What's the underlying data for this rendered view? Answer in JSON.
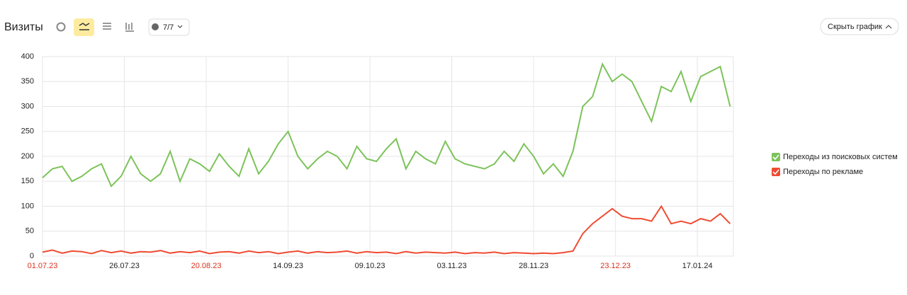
{
  "header": {
    "title": "Визиты",
    "filter": "7/7",
    "hide_button": "Скрыть график"
  },
  "chart_data": {
    "type": "line",
    "x": [
      "01.07.23",
      "04.07.23",
      "07.07.23",
      "10.07.23",
      "13.07.23",
      "16.07.23",
      "19.07.23",
      "22.07.23",
      "25.07.23",
      "28.07.23",
      "31.07.23",
      "03.08.23",
      "06.08.23",
      "09.08.23",
      "12.08.23",
      "15.08.23",
      "18.08.23",
      "21.08.23",
      "24.08.23",
      "27.08.23",
      "30.08.23",
      "02.09.23",
      "05.09.23",
      "08.09.23",
      "11.09.23",
      "14.09.23",
      "17.09.23",
      "20.09.23",
      "23.09.23",
      "26.09.23",
      "29.09.23",
      "02.10.23",
      "05.10.23",
      "08.10.23",
      "11.10.23",
      "14.10.23",
      "17.10.23",
      "20.10.23",
      "23.10.23",
      "26.10.23",
      "29.10.23",
      "01.11.23",
      "04.11.23",
      "07.11.23",
      "10.11.23",
      "13.11.23",
      "16.11.23",
      "19.11.23",
      "22.11.23",
      "25.11.23",
      "28.11.23",
      "01.12.23",
      "04.12.23",
      "07.12.23",
      "10.12.23",
      "13.12.23",
      "16.12.23",
      "19.12.23",
      "22.12.23",
      "25.12.23",
      "28.12.23",
      "31.12.23",
      "03.01.24",
      "06.01.24",
      "09.01.24",
      "12.01.24",
      "15.01.24",
      "18.01.24",
      "21.01.24",
      "24.01.24",
      "27.01.24"
    ],
    "series": [
      {
        "name": "Переходы из поисковых систем",
        "color": "#7cc35a",
        "values": [
          157,
          175,
          180,
          150,
          160,
          175,
          185,
          140,
          160,
          200,
          165,
          150,
          165,
          210,
          150,
          195,
          185,
          170,
          205,
          180,
          160,
          215,
          165,
          190,
          225,
          250,
          200,
          175,
          195,
          210,
          200,
          175,
          220,
          195,
          190,
          215,
          235,
          175,
          210,
          195,
          185,
          230,
          195,
          185,
          180,
          175,
          185,
          210,
          190,
          225,
          200,
          165,
          185,
          160,
          210,
          300,
          320,
          385,
          350,
          365,
          350,
          310,
          270,
          340,
          330,
          370,
          310,
          360,
          370,
          380,
          300
        ]
      },
      {
        "name": "Переходы по рекламе",
        "color": "#ef4b32",
        "values": [
          8,
          12,
          6,
          10,
          9,
          5,
          11,
          7,
          10,
          6,
          9,
          8,
          11,
          6,
          9,
          7,
          10,
          5,
          8,
          9,
          6,
          10,
          7,
          9,
          5,
          8,
          10,
          6,
          9,
          7,
          8,
          10,
          6,
          9,
          7,
          8,
          5,
          9,
          6,
          8,
          7,
          6,
          8,
          5,
          7,
          6,
          8,
          5,
          7,
          6,
          5,
          6,
          5,
          7,
          10,
          45,
          65,
          80,
          95,
          80,
          75,
          75,
          70,
          100,
          65,
          70,
          65,
          75,
          70,
          85,
          65
        ]
      }
    ],
    "xlim": [
      "01.07.23",
      "28.01.24"
    ],
    "xticks": [
      "01.07.23",
      "26.07.23",
      "20.08.23",
      "14.09.23",
      "09.10.23",
      "03.11.23",
      "28.11.23",
      "23.12.23",
      "17.01.24"
    ],
    "xtick_colors": [
      "#d8321e",
      "#222222",
      "#d8321e",
      "#222222",
      "#222222",
      "#222222",
      "#222222",
      "#d8321e",
      "#222222"
    ],
    "ylim": [
      0,
      400
    ],
    "yticks": [
      0,
      50,
      100,
      150,
      200,
      250,
      300,
      350,
      400
    ],
    "grid": true,
    "legend": "right"
  }
}
